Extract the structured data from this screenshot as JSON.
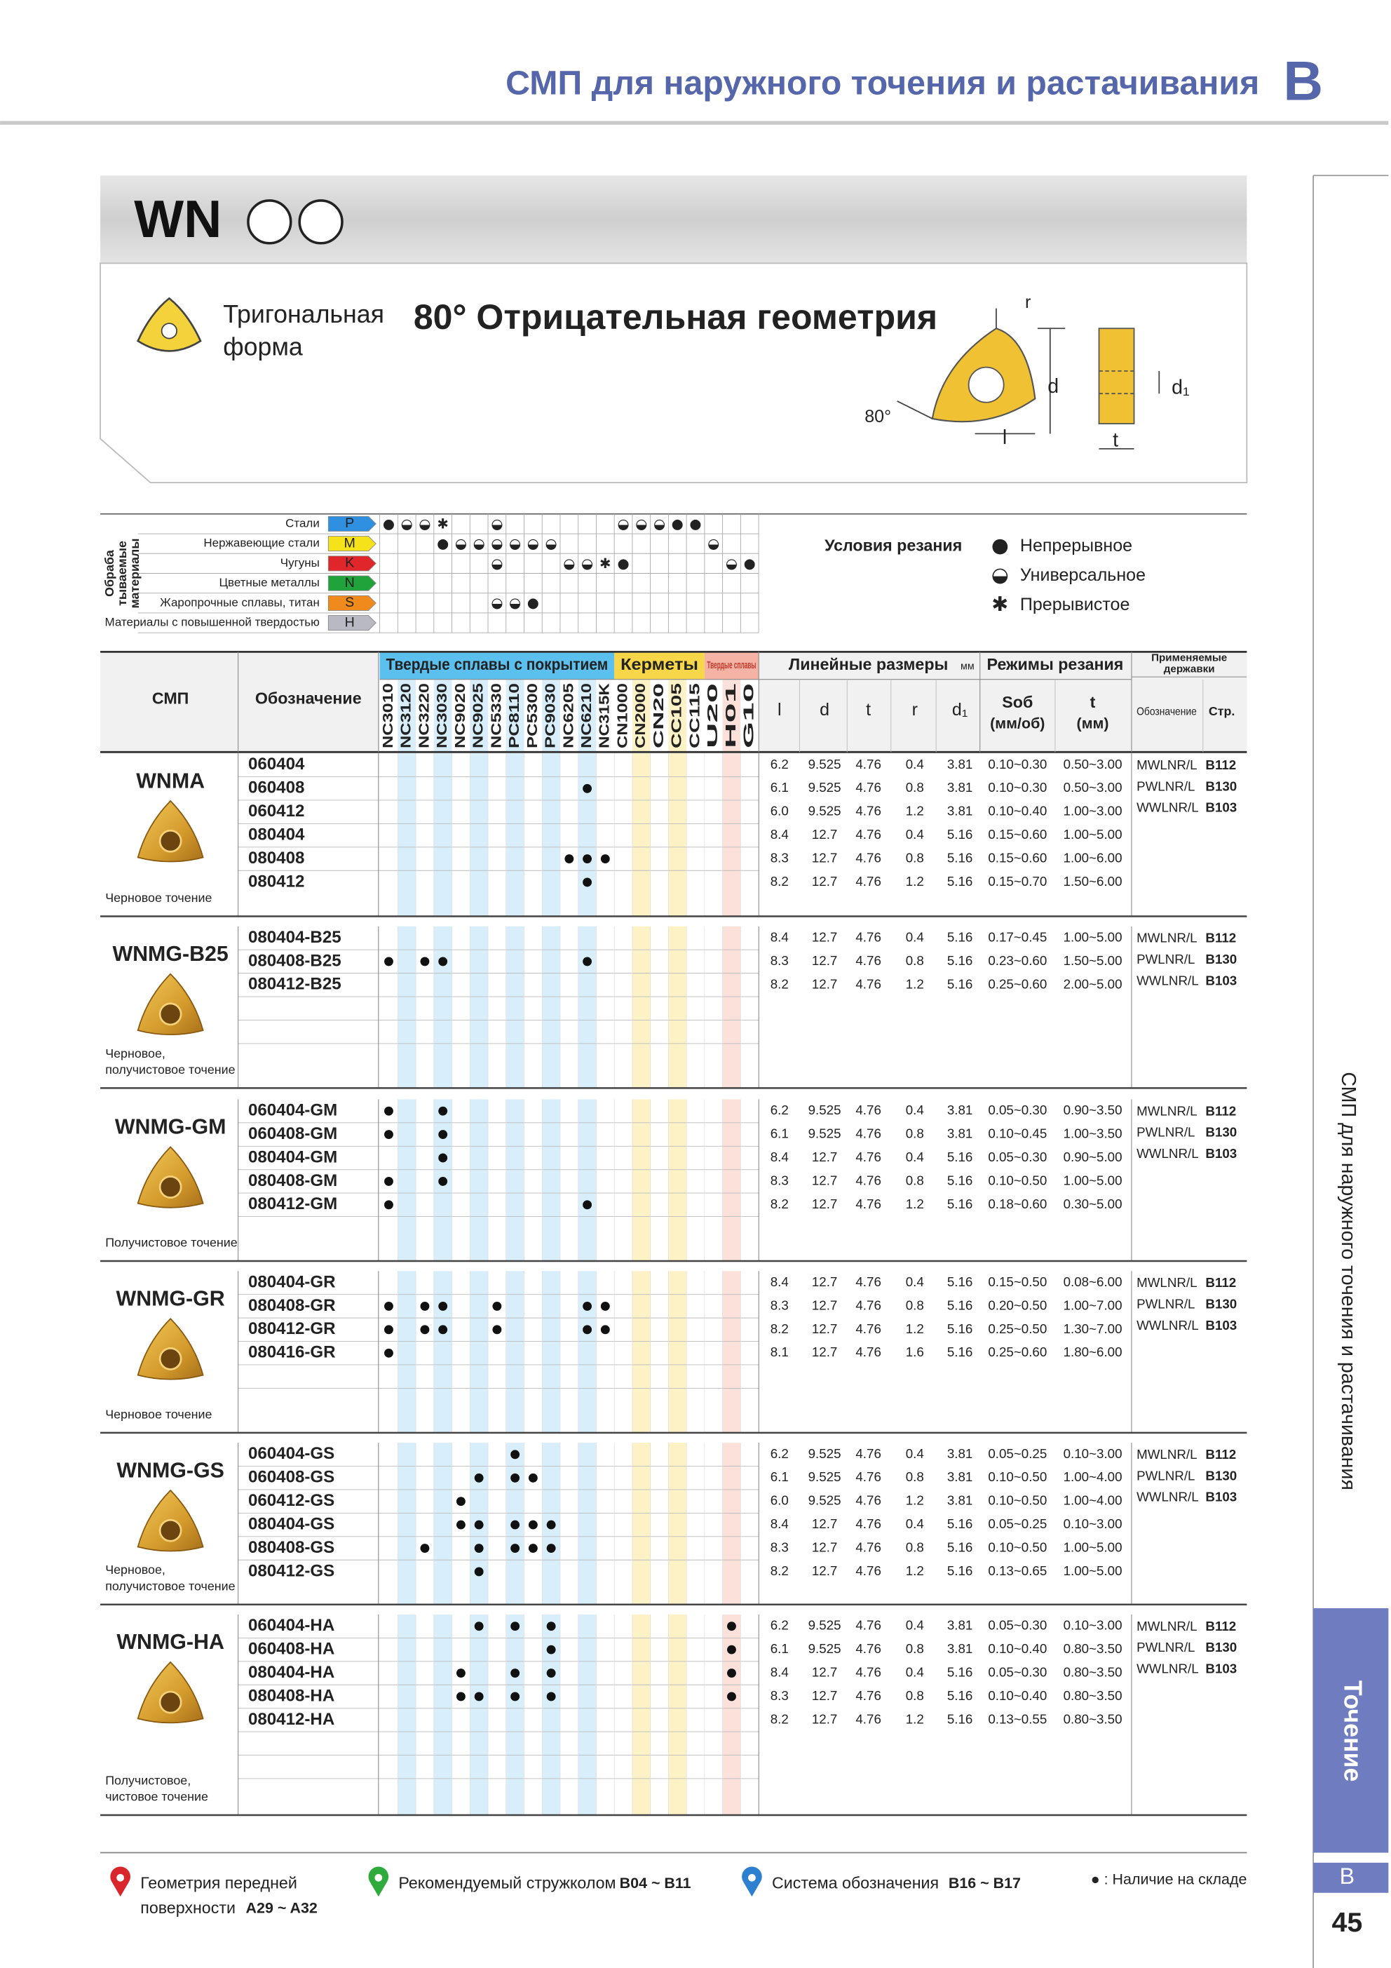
{
  "header": {
    "title": "СМП для наружного точения и растачивания",
    "section_letter": "B"
  },
  "series": {
    "code": "WN",
    "shape_lines": [
      "Тригональная",
      "форма"
    ],
    "geometry": "80° Отрицательная геометрия",
    "diagram_labels": {
      "r": "r",
      "d": "d",
      "angle": "80°",
      "l": "l",
      "t": "t",
      "d1": "d₁"
    }
  },
  "materials": {
    "title_lines": [
      "Обраба",
      "тываемые",
      "материалы"
    ],
    "rows": [
      {
        "name": "Стали",
        "letter": "P",
        "color": "#2f8fe0",
        "marks": [
          "●",
          "◒",
          "◒",
          "✱",
          null,
          null,
          "◒",
          null,
          null,
          null,
          null,
          null,
          null,
          "◒",
          "◒",
          "◒",
          "●",
          "●",
          null,
          null,
          null
        ]
      },
      {
        "name": "Нержавеющие стали",
        "letter": "M",
        "color": "#f5e21b",
        "marks": [
          null,
          null,
          null,
          "●",
          "◒",
          "◒",
          "◒",
          "◒",
          "◒",
          "◒",
          null,
          null,
          null,
          null,
          null,
          null,
          null,
          null,
          "◒",
          null,
          null
        ]
      },
      {
        "name": "Чугуны",
        "letter": "K",
        "color": "#e0262b",
        "marks": [
          null,
          null,
          null,
          null,
          null,
          null,
          "◒",
          null,
          null,
          null,
          "◒",
          "◒",
          "✱",
          "●",
          null,
          null,
          null,
          null,
          null,
          "◒",
          "●"
        ]
      },
      {
        "name": "Цветные металлы",
        "letter": "N",
        "color": "#1fa33a",
        "marks": [
          null,
          null,
          null,
          null,
          null,
          null,
          null,
          null,
          null,
          null,
          null,
          null,
          null,
          null,
          null,
          null,
          null,
          null,
          null,
          null,
          null
        ]
      },
      {
        "name": "Жаропрочные сплавы, титан",
        "letter": "S",
        "color": "#f08a1c",
        "marks": [
          null,
          null,
          null,
          null,
          null,
          null,
          "◒",
          "◒",
          "●",
          null,
          null,
          null,
          null,
          null,
          null,
          null,
          null,
          null,
          null,
          null,
          null
        ]
      },
      {
        "name": "Материалы с повышенной твердостью",
        "letter": "H",
        "color": "#b9b9c4",
        "marks": [
          null,
          null,
          null,
          null,
          null,
          null,
          null,
          null,
          null,
          null,
          null,
          null,
          null,
          null,
          null,
          null,
          null,
          null,
          null,
          null,
          null
        ]
      }
    ]
  },
  "cutting_conditions": {
    "title": "Условия резания",
    "items": [
      {
        "symbol": "●",
        "label": "Непрерывное"
      },
      {
        "symbol": "◒",
        "label": "Универсальное"
      },
      {
        "symbol": "✱",
        "label": "Прерывистое"
      }
    ]
  },
  "table": {
    "headers": {
      "insert": "СМП",
      "code": "Обозначение",
      "dims": "Линейные размеры",
      "dims_unit": "мм",
      "modes": "Режимы резания",
      "holders_lines": [
        "Применяемые",
        "державки"
      ],
      "l": "l",
      "d": "d",
      "t": "t",
      "r": "r",
      "d1": "d₁",
      "feed_lines": [
        "Sоб",
        "(мм/об)"
      ],
      "depth_lines": [
        "t",
        "(мм)"
      ],
      "holder_code": "Обозначение",
      "holder_page": "Стр."
    },
    "grade_groups": [
      {
        "label": "Твердые сплавы с покрытием",
        "color": "#5cc0ef",
        "stripe": "#d8effb",
        "grades": [
          "NC3010",
          "NC3120",
          "NC3220",
          "NC3030",
          "NC9020",
          "NC9025",
          "NC5330",
          "PC8110",
          "PC5300",
          "PC9030",
          "NC6205",
          "NC6210",
          "NC315K"
        ]
      },
      {
        "label": "Керметы",
        "color": "#f7d64a",
        "stripe": "#fdf2c6",
        "grades": [
          "CN1000",
          "CN2000",
          "CN20",
          "CC105",
          "CC115"
        ]
      },
      {
        "label": "Твердые сплавы",
        "color": "#f4b3a5",
        "stripe": "#fbe1da",
        "grades": [
          "U20",
          "H01",
          "G10"
        ]
      }
    ],
    "groups": [
      {
        "name": "WNMA",
        "description": [
          "Черновое точение"
        ],
        "rows": [
          {
            "code": "060404",
            "stock": [],
            "dims": [
              "6.2",
              "9.525",
              "4.76",
              "0.4",
              "3.81"
            ],
            "feed": "0.10~0.30",
            "depth": "0.50~3.00"
          },
          {
            "code": "060408",
            "stock": [
              11
            ],
            "dims": [
              "6.1",
              "9.525",
              "4.76",
              "0.8",
              "3.81"
            ],
            "feed": "0.10~0.30",
            "depth": "0.50~3.00"
          },
          {
            "code": "060412",
            "stock": [],
            "dims": [
              "6.0",
              "9.525",
              "4.76",
              "1.2",
              "3.81"
            ],
            "feed": "0.10~0.40",
            "depth": "1.00~3.00"
          },
          {
            "code": "080404",
            "stock": [],
            "dims": [
              "8.4",
              "12.7",
              "4.76",
              "0.4",
              "5.16"
            ],
            "feed": "0.15~0.60",
            "depth": "1.00~5.00"
          },
          {
            "code": "080408",
            "stock": [
              10,
              11,
              12
            ],
            "dims": [
              "8.3",
              "12.7",
              "4.76",
              "0.8",
              "5.16"
            ],
            "feed": "0.15~0.60",
            "depth": "1.00~6.00"
          },
          {
            "code": "080412",
            "stock": [
              11
            ],
            "dims": [
              "8.2",
              "12.7",
              "4.76",
              "1.2",
              "5.16"
            ],
            "feed": "0.15~0.70",
            "depth": "1.50~6.00"
          }
        ],
        "holders": [
          {
            "name": "MWLNR/L",
            "page": "B112"
          },
          {
            "name": "PWLNR/L",
            "page": "B130"
          },
          {
            "name": "WWLNR/L",
            "page": "B103"
          }
        ]
      },
      {
        "name": "WNMG-B25",
        "description": [
          "Черновое,",
          "получистовое точение"
        ],
        "rows": [
          {
            "code": "080404-B25",
            "stock": [],
            "dims": [
              "8.4",
              "12.7",
              "4.76",
              "0.4",
              "5.16"
            ],
            "feed": "0.17~0.45",
            "depth": "1.00~5.00"
          },
          {
            "code": "080408-B25",
            "stock": [
              0,
              2,
              3,
              11
            ],
            "dims": [
              "8.3",
              "12.7",
              "4.76",
              "0.8",
              "5.16"
            ],
            "feed": "0.23~0.60",
            "depth": "1.50~5.00"
          },
          {
            "code": "080412-B25",
            "stock": [],
            "dims": [
              "8.2",
              "12.7",
              "4.76",
              "1.2",
              "5.16"
            ],
            "feed": "0.25~0.60",
            "depth": "2.00~5.00"
          }
        ],
        "holders": [
          {
            "name": "MWLNR/L",
            "page": "B112"
          },
          {
            "name": "PWLNR/L",
            "page": "B130"
          },
          {
            "name": "WWLNR/L",
            "page": "B103"
          }
        ]
      },
      {
        "name": "WNMG-GM",
        "description": [
          "Получистовое точение"
        ],
        "rows": [
          {
            "code": "060404-GM",
            "stock": [
              0,
              3
            ],
            "dims": [
              "6.2",
              "9.525",
              "4.76",
              "0.4",
              "3.81"
            ],
            "feed": "0.05~0.30",
            "depth": "0.90~3.50"
          },
          {
            "code": "060408-GM",
            "stock": [
              0,
              3
            ],
            "dims": [
              "6.1",
              "9.525",
              "4.76",
              "0.8",
              "3.81"
            ],
            "feed": "0.10~0.45",
            "depth": "1.00~3.50"
          },
          {
            "code": "080404-GM",
            "stock": [
              3
            ],
            "dims": [
              "8.4",
              "12.7",
              "4.76",
              "0.4",
              "5.16"
            ],
            "feed": "0.05~0.30",
            "depth": "0.90~5.00"
          },
          {
            "code": "080408-GM",
            "stock": [
              0,
              3
            ],
            "dims": [
              "8.3",
              "12.7",
              "4.76",
              "0.8",
              "5.16"
            ],
            "feed": "0.10~0.50",
            "depth": "1.00~5.00"
          },
          {
            "code": "080412-GM",
            "stock": [
              0,
              11
            ],
            "dims": [
              "8.2",
              "12.7",
              "4.76",
              "1.2",
              "5.16"
            ],
            "feed": "0.18~0.60",
            "depth": "0.30~5.00"
          }
        ],
        "holders": [
          {
            "name": "MWLNR/L",
            "page": "B112"
          },
          {
            "name": "PWLNR/L",
            "page": "B130"
          },
          {
            "name": "WWLNR/L",
            "page": "B103"
          }
        ]
      },
      {
        "name": "WNMG-GR",
        "description": [
          "Черновое точение"
        ],
        "rows": [
          {
            "code": "080404-GR",
            "stock": [],
            "dims": [
              "8.4",
              "12.7",
              "4.76",
              "0.4",
              "5.16"
            ],
            "feed": "0.15~0.50",
            "depth": "0.08~6.00"
          },
          {
            "code": "080408-GR",
            "stock": [
              0,
              2,
              3,
              6,
              11,
              12
            ],
            "dims": [
              "8.3",
              "12.7",
              "4.76",
              "0.8",
              "5.16"
            ],
            "feed": "0.20~0.50",
            "depth": "1.00~7.00"
          },
          {
            "code": "080412-GR",
            "stock": [
              0,
              2,
              3,
              6,
              11,
              12
            ],
            "dims": [
              "8.2",
              "12.7",
              "4.76",
              "1.2",
              "5.16"
            ],
            "feed": "0.25~0.50",
            "depth": "1.30~7.00"
          },
          {
            "code": "080416-GR",
            "stock": [
              0
            ],
            "dims": [
              "8.1",
              "12.7",
              "4.76",
              "1.6",
              "5.16"
            ],
            "feed": "0.25~0.60",
            "depth": "1.80~6.00"
          }
        ],
        "holders": [
          {
            "name": "MWLNR/L",
            "page": "B112"
          },
          {
            "name": "PWLNR/L",
            "page": "B130"
          },
          {
            "name": "WWLNR/L",
            "page": "B103"
          }
        ]
      },
      {
        "name": "WNMG-GS",
        "description": [
          "Черновое,",
          "получистовое точение"
        ],
        "rows": [
          {
            "code": "060404-GS",
            "stock": [
              7
            ],
            "dims": [
              "6.2",
              "9.525",
              "4.76",
              "0.4",
              "3.81"
            ],
            "feed": "0.05~0.25",
            "depth": "0.10~3.00"
          },
          {
            "code": "060408-GS",
            "stock": [
              5,
              7,
              8
            ],
            "dims": [
              "6.1",
              "9.525",
              "4.76",
              "0.8",
              "3.81"
            ],
            "feed": "0.10~0.50",
            "depth": "1.00~4.00"
          },
          {
            "code": "060412-GS",
            "stock": [
              4
            ],
            "dims": [
              "6.0",
              "9.525",
              "4.76",
              "1.2",
              "3.81"
            ],
            "feed": "0.10~0.50",
            "depth": "1.00~4.00"
          },
          {
            "code": "080404-GS",
            "stock": [
              4,
              5,
              7,
              8,
              9
            ],
            "dims": [
              "8.4",
              "12.7",
              "4.76",
              "0.4",
              "5.16"
            ],
            "feed": "0.05~0.25",
            "depth": "0.10~3.00"
          },
          {
            "code": "080408-GS",
            "stock": [
              2,
              5,
              7,
              8,
              9
            ],
            "dims": [
              "8.3",
              "12.7",
              "4.76",
              "0.8",
              "5.16"
            ],
            "feed": "0.10~0.50",
            "depth": "1.00~5.00"
          },
          {
            "code": "080412-GS",
            "stock": [
              5
            ],
            "dims": [
              "8.2",
              "12.7",
              "4.76",
              "1.2",
              "5.16"
            ],
            "feed": "0.13~0.65",
            "depth": "1.00~5.00"
          }
        ],
        "holders": [
          {
            "name": "MWLNR/L",
            "page": "B112"
          },
          {
            "name": "PWLNR/L",
            "page": "B130"
          },
          {
            "name": "WWLNR/L",
            "page": "B103"
          }
        ]
      },
      {
        "name": "WNMG-HA",
        "description": [
          "Получистовое,",
          "чистовое точение"
        ],
        "rows": [
          {
            "code": "060404-HA",
            "stock": [
              5,
              7,
              9,
              19
            ],
            "dims": [
              "6.2",
              "9.525",
              "4.76",
              "0.4",
              "3.81"
            ],
            "feed": "0.05~0.30",
            "depth": "0.10~3.00"
          },
          {
            "code": "060408-HA",
            "stock": [
              9,
              19
            ],
            "dims": [
              "6.1",
              "9.525",
              "4.76",
              "0.8",
              "3.81"
            ],
            "feed": "0.10~0.40",
            "depth": "0.80~3.50"
          },
          {
            "code": "080404-HA",
            "stock": [
              4,
              7,
              9,
              19
            ],
            "dims": [
              "8.4",
              "12.7",
              "4.76",
              "0.4",
              "5.16"
            ],
            "feed": "0.05~0.30",
            "depth": "0.80~3.50"
          },
          {
            "code": "080408-HA",
            "stock": [
              4,
              5,
              7,
              9,
              19
            ],
            "dims": [
              "8.3",
              "12.7",
              "4.76",
              "0.8",
              "5.16"
            ],
            "feed": "0.10~0.40",
            "depth": "0.80~3.50"
          },
          {
            "code": "080412-HA",
            "stock": [],
            "dims": [
              "8.2",
              "12.7",
              "4.76",
              "1.2",
              "5.16"
            ],
            "feed": "0.13~0.55",
            "depth": "0.80~3.50"
          }
        ],
        "holders": [
          {
            "name": "MWLNR/L",
            "page": "B112"
          },
          {
            "name": "PWLNR/L",
            "page": "B130"
          },
          {
            "name": "WWLNR/L",
            "page": "B103"
          }
        ]
      }
    ]
  },
  "footer": {
    "links": [
      {
        "lines": [
          "Геометрия передней",
          "поверхности"
        ],
        "pages": "A29 ~ A32",
        "color": "#d8262c"
      },
      {
        "lines": [
          "Рекомендуемый стружколом"
        ],
        "pages": "B04 ~ B11",
        "color": "#2faa3c"
      },
      {
        "lines": [
          "Система обозначения"
        ],
        "pages": "B16 ~ B17",
        "color": "#2d7fd0"
      }
    ],
    "stock_note": "● : Наличие на складе"
  },
  "side": {
    "vertical_title": "СМП для наружного точения и растачивания",
    "tab": "Точение",
    "letter": "B",
    "page": "45"
  }
}
